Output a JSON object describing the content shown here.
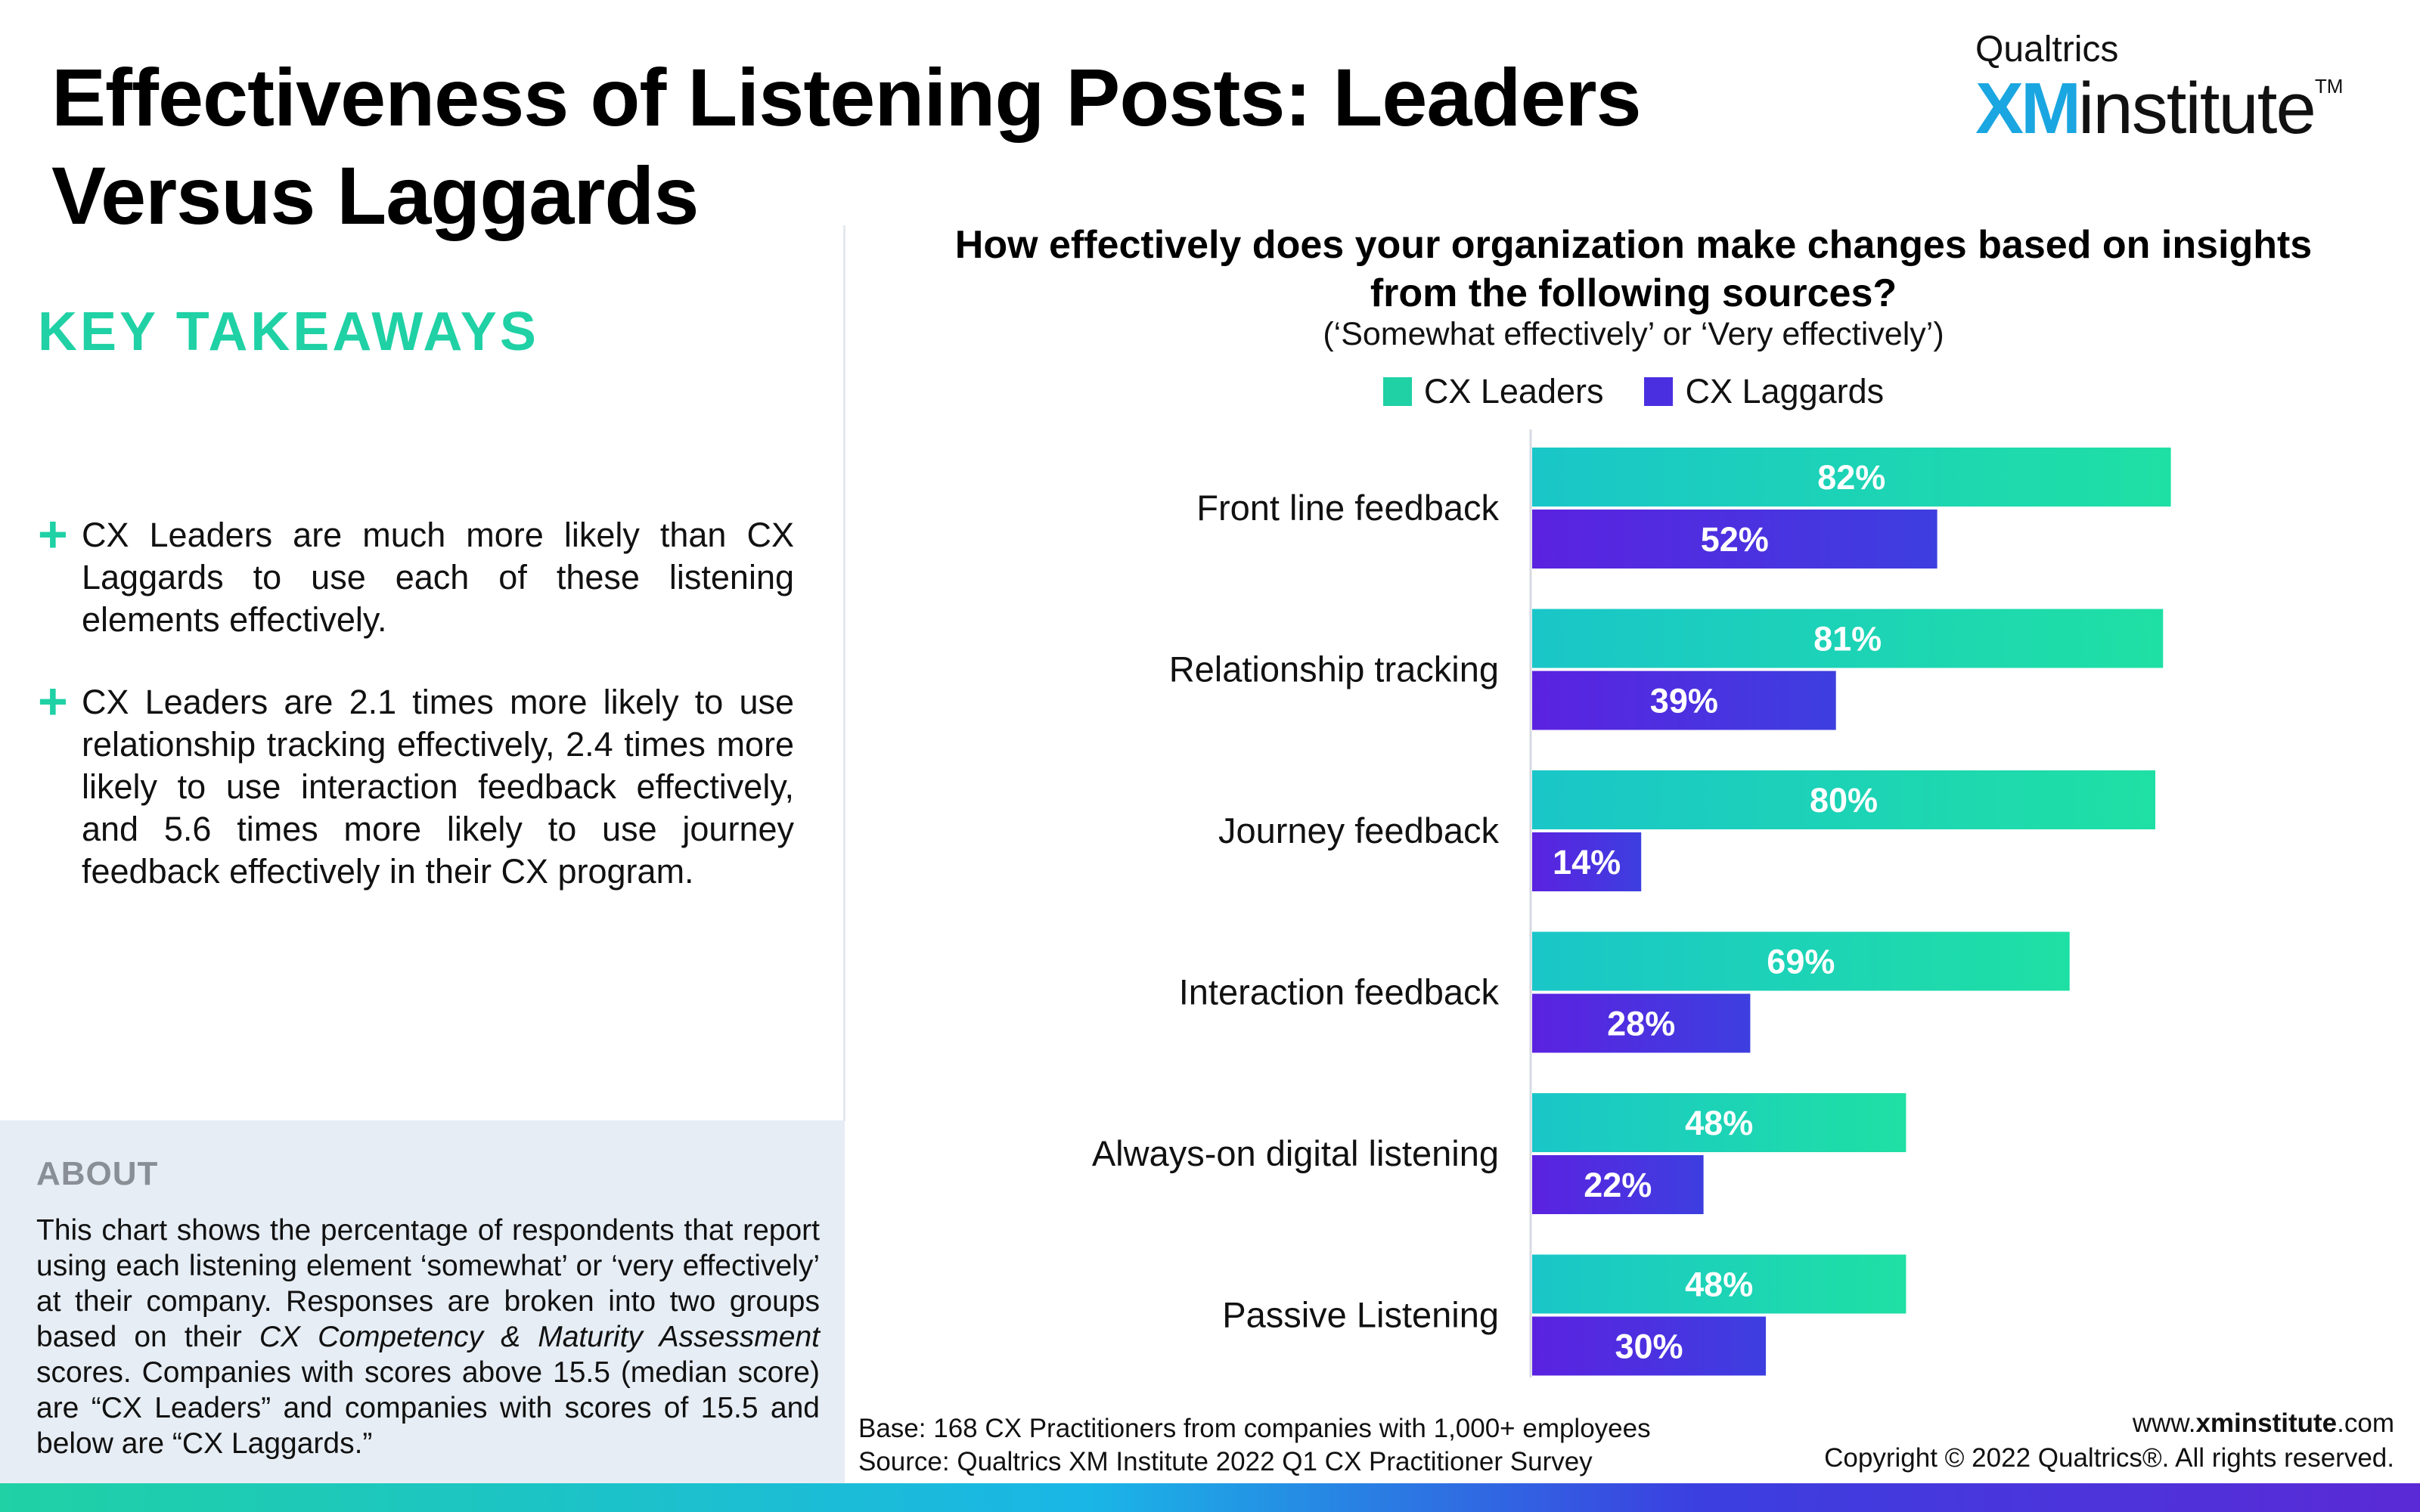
{
  "title": "Effectiveness of Listening Posts: Leaders Versus Laggards",
  "logo": {
    "brand": "Qualtrics",
    "xm": "XM",
    "institute": "institute",
    "tm": "TM"
  },
  "key_takeaways": {
    "heading": "KEY TAKEAWAYS",
    "items": [
      "CX Leaders are much more likely than CX Laggards to use each of these listening elements effectively.",
      "CX Leaders are 2.1 times more likely to use relationship tracking effectively, 2.4 times more likely to use interaction feedback effectively, and 5.6 times more likely to use journey feedback effectively in their CX program."
    ]
  },
  "about": {
    "heading": "ABOUT",
    "body_before": "This chart shows the percentage of respondents that report using each listening element ‘somewhat’ or ‘very effectively’ at their company. Responses are broken into two groups based on their ",
    "body_italic": "CX Competency & Maturity Assessment",
    "body_after": " scores. Companies with scores above 15.5 (median score) are “CX Leaders” and companies with scores of 15.5 and below are “CX Laggards.”"
  },
  "chart_data": {
    "type": "bar",
    "orientation": "horizontal",
    "title": "How effectively does your organization make changes based on insights from the following sources?",
    "subtitle": "(‘Somewhat effectively’ or ‘Very effectively’)",
    "legend_placement": "top",
    "xlim": [
      0,
      100
    ],
    "categories": [
      "Front line feedback",
      "Relationship tracking",
      "Journey feedback",
      "Interaction feedback",
      "Always-on digital listening",
      "Passive Listening"
    ],
    "series": [
      {
        "name": "CX Leaders",
        "values": [
          82,
          81,
          80,
          69,
          48,
          48
        ],
        "color": "#1fd1a5"
      },
      {
        "name": "CX Laggards",
        "values": [
          52,
          39,
          14,
          28,
          22,
          30
        ],
        "color": "#4a2fe0"
      }
    ]
  },
  "footer": {
    "base": "Base: 168 CX Practitioners from companies with 1,000+ employees",
    "source": "Source: Qualtrics XM Institute 2022 Q1 CX Practitioner Survey",
    "url_prefix": "www.",
    "url_bold": "xminstitute",
    "url_suffix": ".com",
    "copyright": "Copyright © 2022 Qualtrics®. All rights reserved."
  }
}
